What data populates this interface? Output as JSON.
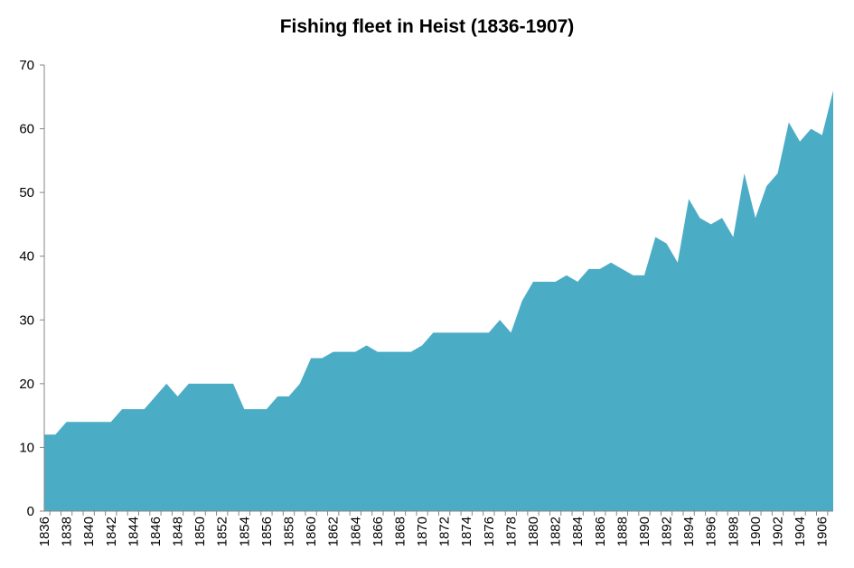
{
  "chart_data": {
    "type": "area",
    "title": "Fishing fleet in Heist (1836-1907)",
    "xlabel": "",
    "ylabel": "",
    "ylim": [
      0,
      70
    ],
    "yticks": [
      0,
      10,
      20,
      30,
      40,
      50,
      60,
      70
    ],
    "grid": false,
    "legend": "none",
    "x": [
      1836,
      1837,
      1838,
      1839,
      1840,
      1841,
      1842,
      1843,
      1844,
      1845,
      1846,
      1847,
      1848,
      1849,
      1850,
      1851,
      1852,
      1853,
      1854,
      1855,
      1856,
      1857,
      1858,
      1859,
      1860,
      1861,
      1862,
      1863,
      1864,
      1865,
      1866,
      1867,
      1868,
      1869,
      1870,
      1871,
      1872,
      1873,
      1874,
      1875,
      1876,
      1877,
      1878,
      1879,
      1880,
      1881,
      1882,
      1883,
      1884,
      1885,
      1886,
      1887,
      1888,
      1889,
      1890,
      1891,
      1892,
      1893,
      1894,
      1895,
      1896,
      1897,
      1898,
      1899,
      1900,
      1901,
      1902,
      1903,
      1904,
      1905,
      1906,
      1907
    ],
    "x_tick_labels": [
      "1836",
      "1838",
      "1840",
      "1842",
      "1844",
      "1846",
      "1848",
      "1850",
      "1852",
      "1854",
      "1856",
      "1858",
      "1860",
      "1862",
      "1864",
      "1866",
      "1868",
      "1870",
      "1872",
      "1874",
      "1876",
      "1878",
      "1880",
      "1882",
      "1884",
      "1886",
      "1888",
      "1890",
      "1892",
      "1894",
      "1896",
      "1898",
      "1900",
      "1902",
      "1904",
      "1906"
    ],
    "series": [
      {
        "values": [
          12,
          12,
          14,
          14,
          14,
          14,
          14,
          16,
          16,
          16,
          18,
          20,
          18,
          20,
          20,
          20,
          20,
          20,
          16,
          16,
          16,
          18,
          18,
          20,
          24,
          24,
          25,
          25,
          25,
          26,
          25,
          25,
          25,
          25,
          26,
          28,
          28,
          28,
          28,
          28,
          28,
          30,
          28,
          33,
          36,
          36,
          36,
          37,
          36,
          38,
          38,
          39,
          38,
          37,
          37,
          43,
          42,
          39,
          49,
          46,
          45,
          46,
          43,
          53,
          46,
          51,
          53,
          61,
          58,
          60,
          59,
          66
        ],
        "color": "#4bacc6"
      }
    ]
  }
}
